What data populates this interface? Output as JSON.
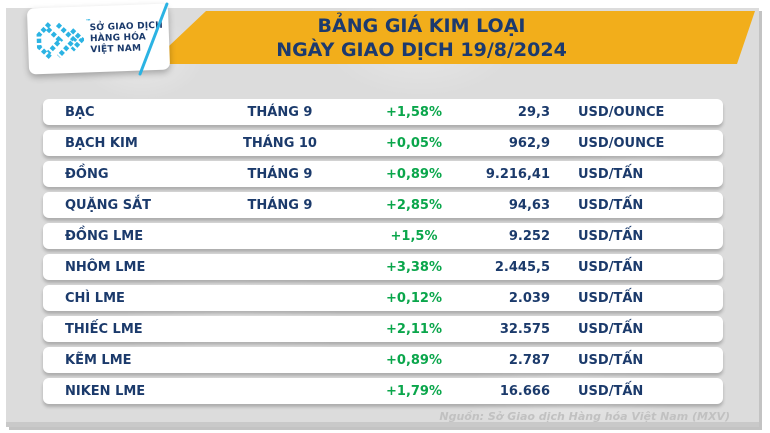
{
  "logo": {
    "org_lines": [
      "SỞ GIAO DỊCH",
      "HÀNG HÓA",
      "VIỆT NAM"
    ],
    "trademark": "™",
    "icon": "mxv-chevron-logo"
  },
  "header": {
    "title_line1": "BẢNG GIÁ KIM LOẠI",
    "title_line2": "NGÀY GIAO DỊCH 19/8/2024"
  },
  "table": {
    "rows": [
      {
        "name": "BẠC",
        "month": "THÁNG 9",
        "change": "+1,58%",
        "price": "29,3",
        "unit": "USD/OUNCE"
      },
      {
        "name": "BẠCH KIM",
        "month": "THÁNG 10",
        "change": "+0,05%",
        "price": "962,9",
        "unit": "USD/OUNCE"
      },
      {
        "name": "ĐỒNG",
        "month": "THÁNG 9",
        "change": "+0,89%",
        "price": "9.216,41",
        "unit": "USD/TẤN"
      },
      {
        "name": "QUẶNG SẮT",
        "month": "THÁNG 9",
        "change": "+2,85%",
        "price": "94,63",
        "unit": "USD/TẤN"
      },
      {
        "name": "ĐỒNG LME",
        "month": "",
        "change": "+1,5%",
        "price": "9.252",
        "unit": "USD/TẤN"
      },
      {
        "name": "NHÔM LME",
        "month": "",
        "change": "+3,38%",
        "price": "2.445,5",
        "unit": "USD/TẤN"
      },
      {
        "name": "CHÌ LME",
        "month": "",
        "change": "+0,12%",
        "price": "2.039",
        "unit": "USD/TẤN"
      },
      {
        "name": "THIẾC LME",
        "month": "",
        "change": "+2,11%",
        "price": "32.575",
        "unit": "USD/TẤN"
      },
      {
        "name": "KẼM LME",
        "month": "",
        "change": "+0,89%",
        "price": "2.787",
        "unit": "USD/TẤN"
      },
      {
        "name": "NIKEN LME",
        "month": "",
        "change": "+1,79%",
        "price": "16.666",
        "unit": "USD/TẤN"
      }
    ]
  },
  "footer": {
    "source": "Nguồn: Sở Giao dịch Hàng hóa Việt Nam (MXV)"
  },
  "colors": {
    "banner_yellow": "#F2AE1B",
    "navy": "#1B3A6B",
    "change_green": "#0AA64B",
    "logo_cyan": "#2BB3E3",
    "panel_gray": "#DCDCDC"
  }
}
